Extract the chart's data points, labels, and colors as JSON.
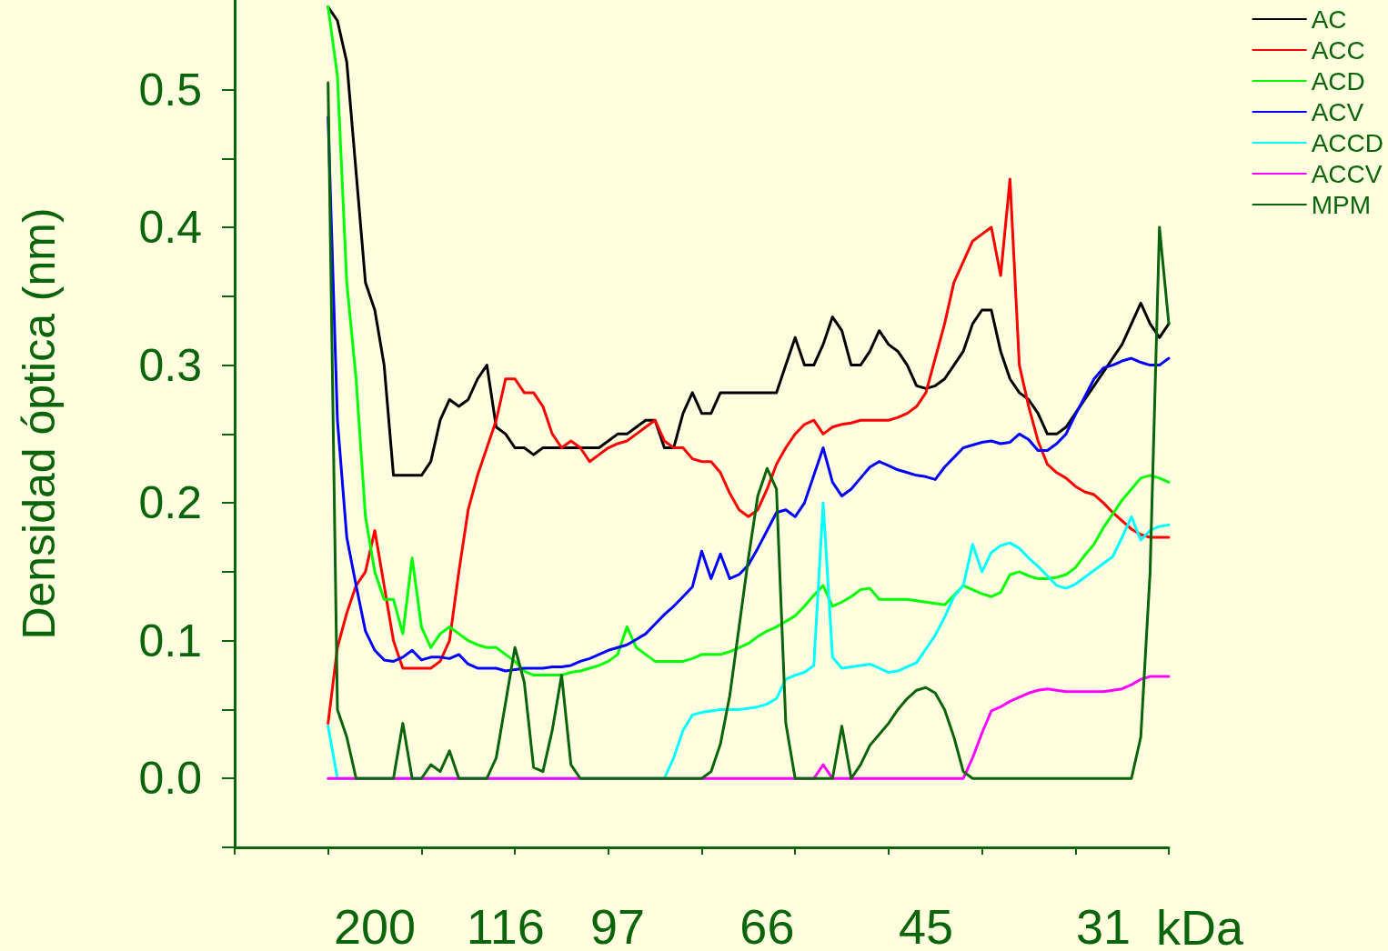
{
  "chart_data": {
    "type": "line",
    "ylabel": "Densidad óptica (nm)",
    "xlabel": "kDa",
    "categories": [
      null,
      null,
      null,
      null,
      null,
      null,
      null,
      null,
      null,
      null,
      null,
      null,
      null,
      null,
      null,
      "200",
      null,
      null,
      null,
      null,
      null,
      null,
      null,
      null,
      null,
      null,
      null,
      null,
      null,
      "116",
      null,
      null,
      null,
      null,
      null,
      null,
      null,
      null,
      null,
      null,
      null,
      "97",
      null,
      null,
      null,
      null,
      null,
      null,
      null,
      null,
      null,
      null,
      null,
      null,
      null,
      null,
      null,
      "66",
      null,
      null,
      null,
      null,
      null,
      null,
      null,
      null,
      null,
      null,
      null,
      null,
      null,
      null,
      null,
      null,
      "45",
      null,
      null,
      null,
      null,
      null,
      null,
      null,
      null,
      null,
      null,
      null,
      null,
      null,
      null,
      null,
      null,
      null,
      null,
      "31",
      null,
      null,
      null,
      null,
      null,
      null,
      null
    ],
    "ylim": [
      -0.05,
      0.565
    ],
    "yticks": [
      {
        "value": -0.05,
        "label": null
      },
      {
        "value": 0,
        "label": "0.0"
      },
      {
        "value": 0.05,
        "label": null
      },
      0.1,
      {
        "value": 0.15,
        "label": null
      },
      0.2,
      {
        "value": 0.25,
        "label": null
      },
      0.3,
      {
        "value": 0.35,
        "label": null
      },
      0.4,
      {
        "value": 0.45,
        "label": null
      },
      0.5
    ],
    "grid": false,
    "legend": "top right",
    "marker": "none",
    "line_style": "solid",
    "series": [
      {
        "name": "AC",
        "color": "#000000",
        "values": [
          null,
          null,
          null,
          null,
          null,
          null,
          null,
          null,
          null,
          null,
          0.56,
          0.55,
          0.52,
          0.44,
          0.36,
          0.34,
          0.3,
          0.22,
          0.22,
          0.22,
          0.22,
          0.23,
          0.26,
          0.275,
          0.27,
          0.275,
          0.29,
          0.3,
          0.255,
          0.25,
          0.24,
          0.24,
          0.235,
          0.24,
          0.24,
          0.24,
          0.24,
          0.24,
          0.24,
          0.24,
          0.245,
          0.25,
          0.25,
          0.255,
          0.26,
          0.26,
          0.24,
          0.24,
          0.265,
          0.28,
          0.265,
          0.265,
          0.28,
          0.28,
          0.28,
          0.28,
          0.28,
          0.28,
          0.28,
          0.3,
          0.32,
          0.3,
          0.3,
          0.315,
          0.335,
          0.325,
          0.3,
          0.3,
          0.31,
          0.325,
          0.315,
          0.31,
          0.3,
          0.285,
          0.283,
          0.285,
          0.29,
          0.3,
          0.31,
          0.33,
          0.34,
          0.34,
          0.31,
          0.29,
          0.28,
          0.275,
          0.265,
          0.25,
          0.25,
          0.255,
          0.265,
          0.275,
          0.285,
          0.295,
          0.305,
          0.315,
          0.33,
          0.345,
          0.33,
          0.32,
          0.33
        ]
      },
      {
        "name": "ACC",
        "color": "#ff0000",
        "values": [
          null,
          null,
          null,
          null,
          null,
          null,
          null,
          null,
          null,
          null,
          0.04,
          0.095,
          0.12,
          0.14,
          0.15,
          0.18,
          0.14,
          0.1,
          0.08,
          0.08,
          0.08,
          0.08,
          0.085,
          0.1,
          0.15,
          0.195,
          0.22,
          0.24,
          0.26,
          0.29,
          0.29,
          0.28,
          0.28,
          0.27,
          0.25,
          0.24,
          0.245,
          0.24,
          0.23,
          0.235,
          0.24,
          0.243,
          0.245,
          0.25,
          0.255,
          0.26,
          0.245,
          0.24,
          0.24,
          0.232,
          0.23,
          0.23,
          0.222,
          0.207,
          0.195,
          0.19,
          0.195,
          0.21,
          0.228,
          0.24,
          0.25,
          0.257,
          0.26,
          0.25,
          0.255,
          0.257,
          0.258,
          0.26,
          0.26,
          0.26,
          0.26,
          0.262,
          0.265,
          0.27,
          0.28,
          0.305,
          0.33,
          0.36,
          0.375,
          0.39,
          0.395,
          0.4,
          0.365,
          0.435,
          0.3,
          0.27,
          0.245,
          0.228,
          0.222,
          0.218,
          0.212,
          0.208,
          0.206,
          0.2,
          0.193,
          0.187,
          0.181,
          0.177,
          0.175,
          0.175,
          0.175
        ]
      },
      {
        "name": "ACD",
        "color": "#00ff00",
        "values": [
          null,
          null,
          null,
          null,
          null,
          null,
          null,
          null,
          null,
          null,
          0.56,
          0.51,
          0.36,
          0.29,
          0.19,
          0.15,
          0.13,
          0.13,
          0.105,
          0.16,
          0.11,
          0.095,
          0.105,
          0.11,
          0.105,
          0.1,
          0.097,
          0.095,
          0.095,
          0.09,
          0.085,
          0.078,
          0.075,
          0.075,
          0.075,
          0.075,
          0.077,
          0.078,
          0.08,
          0.082,
          0.085,
          0.09,
          0.11,
          0.095,
          0.09,
          0.085,
          0.085,
          0.085,
          0.085,
          0.087,
          0.09,
          0.09,
          0.09,
          0.092,
          0.095,
          0.098,
          0.103,
          0.107,
          0.11,
          0.114,
          0.118,
          0.125,
          0.133,
          0.14,
          0.125,
          0.128,
          0.132,
          0.137,
          0.138,
          0.13,
          0.13,
          0.13,
          0.13,
          0.129,
          0.128,
          0.127,
          0.126,
          0.133,
          0.14,
          0.137,
          0.134,
          0.132,
          0.135,
          0.148,
          0.15,
          0.147,
          0.145,
          0.145,
          0.146,
          0.148,
          0.153,
          0.162,
          0.17,
          0.182,
          0.192,
          0.202,
          0.21,
          0.218,
          0.22,
          0.218,
          0.215
        ]
      },
      {
        "name": "ACV",
        "color": "#0000ff",
        "values": [
          null,
          null,
          null,
          null,
          null,
          null,
          null,
          null,
          null,
          null,
          0.48,
          0.26,
          0.175,
          0.14,
          0.107,
          0.093,
          0.086,
          0.085,
          0.088,
          0.093,
          0.086,
          0.088,
          0.088,
          0.087,
          0.09,
          0.083,
          0.08,
          0.08,
          0.08,
          0.078,
          0.079,
          0.08,
          0.08,
          0.08,
          0.081,
          0.081,
          0.082,
          0.085,
          0.087,
          0.09,
          0.093,
          0.095,
          0.097,
          0.101,
          0.105,
          0.112,
          0.119,
          0.125,
          0.132,
          0.139,
          0.165,
          0.145,
          0.163,
          0.145,
          0.148,
          0.155,
          0.167,
          0.18,
          0.193,
          0.195,
          0.19,
          0.2,
          0.22,
          0.24,
          0.215,
          0.205,
          0.21,
          0.218,
          0.226,
          0.23,
          0.227,
          0.224,
          0.222,
          0.22,
          0.219,
          0.217,
          0.226,
          0.233,
          0.24,
          0.242,
          0.244,
          0.245,
          0.243,
          0.244,
          0.25,
          0.246,
          0.238,
          0.238,
          0.243,
          0.25,
          0.264,
          0.277,
          0.29,
          0.298,
          0.3,
          0.303,
          0.305,
          0.302,
          0.3,
          0.3,
          0.305
        ]
      },
      {
        "name": "ACCD",
        "color": "#00ffff",
        "values": [
          null,
          null,
          null,
          null,
          null,
          null,
          null,
          null,
          null,
          null,
          0.038,
          0,
          0,
          0,
          0,
          0,
          0,
          0,
          0,
          0,
          0,
          0,
          0,
          0,
          0,
          0,
          0,
          0,
          0,
          0,
          0,
          0,
          0,
          0,
          0,
          0,
          0,
          0,
          0,
          0,
          0,
          0,
          0,
          0,
          0,
          0,
          0,
          0.015,
          0.035,
          0.046,
          0.048,
          0.049,
          0.05,
          0.05,
          0.05,
          0.051,
          0.052,
          0.054,
          0.058,
          0.072,
          0.075,
          0.077,
          0.082,
          0.2,
          0.088,
          0.08,
          0.081,
          0.082,
          0.083,
          0.08,
          0.077,
          0.078,
          0.081,
          0.084,
          0.094,
          0.104,
          0.117,
          0.132,
          0.14,
          0.17,
          0.15,
          0.164,
          0.169,
          0.171,
          0.167,
          0.16,
          0.154,
          0.147,
          0.14,
          0.138,
          0.141,
          0.146,
          0.151,
          0.156,
          0.161,
          0.175,
          0.19,
          0.173,
          0.18,
          0.183,
          0.184
        ]
      },
      {
        "name": "ACCV",
        "color": "#ff00ff",
        "values": [
          null,
          null,
          null,
          null,
          null,
          null,
          null,
          null,
          null,
          null,
          0,
          0,
          0,
          0,
          0,
          0,
          0,
          0,
          0,
          0,
          0,
          0,
          0,
          0,
          0,
          0,
          0,
          0,
          0,
          0,
          0,
          0,
          0,
          0,
          0,
          0,
          0,
          0,
          0,
          0,
          0,
          0,
          0,
          0,
          0,
          0,
          0,
          0,
          0,
          0,
          0,
          0,
          0,
          0,
          0,
          0,
          0,
          0,
          0,
          0,
          0,
          0,
          0,
          0.01,
          0,
          0,
          0,
          0,
          0,
          0,
          0,
          0,
          0,
          0,
          0,
          0,
          0,
          0,
          0,
          0.015,
          0.033,
          0.049,
          0.052,
          0.056,
          0.059,
          0.062,
          0.064,
          0.065,
          0.064,
          0.063,
          0.063,
          0.063,
          0.063,
          0.063,
          0.064,
          0.065,
          0.068,
          0.072,
          0.074,
          0.074,
          0.074
        ]
      },
      {
        "name": "MPM",
        "color": "#0a640a",
        "values": [
          null,
          null,
          null,
          null,
          null,
          null,
          null,
          null,
          null,
          null,
          0.505,
          0.05,
          0.03,
          0,
          0,
          0,
          0,
          0,
          0.04,
          0,
          0,
          0.01,
          0.005,
          0.02,
          0,
          0,
          0,
          0,
          0.015,
          0.055,
          0.095,
          0.07,
          0.008,
          0.005,
          0.035,
          0.075,
          0.01,
          0,
          0,
          0,
          0,
          0,
          0,
          0,
          0,
          0,
          0,
          0,
          0,
          0,
          0,
          0.005,
          0.025,
          0.06,
          0.11,
          0.16,
          0.205,
          0.225,
          0.21,
          0.04,
          0,
          0,
          0,
          0,
          0,
          0.038,
          0,
          0.01,
          0.024,
          0.032,
          0.04,
          0.05,
          0.058,
          0.064,
          0.066,
          0.062,
          0.05,
          0.03,
          0.005,
          0,
          0,
          0,
          0,
          0,
          0,
          0,
          0,
          0,
          0,
          0,
          0,
          0,
          0,
          0,
          0,
          0,
          0,
          0.03,
          0.15,
          0.4,
          0.33
        ]
      }
    ]
  }
}
